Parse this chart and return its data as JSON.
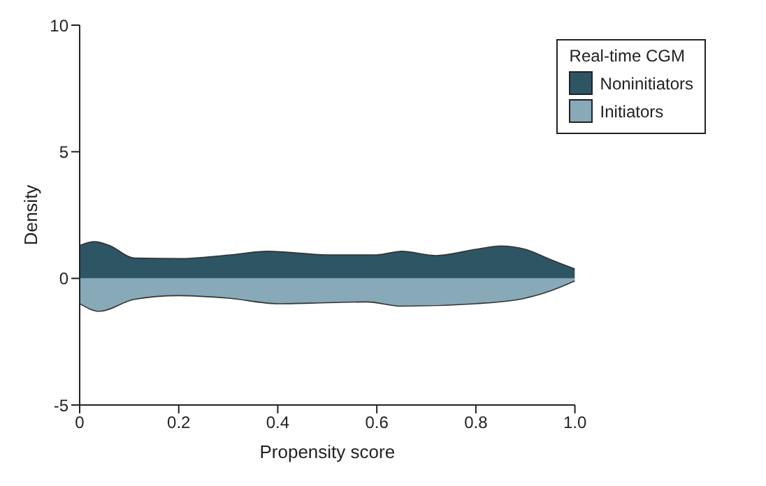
{
  "chart_data": {
    "type": "area",
    "xlabel": "Propensity score",
    "ylabel": "Density",
    "legend_title": "Real-time CGM",
    "legend": "top right",
    "xlim": [
      0,
      1
    ],
    "xticks": [
      0,
      0.2,
      0.4,
      0.6,
      0.8,
      {
        "value": 1,
        "label": "1.0"
      }
    ],
    "ylim": [
      -5,
      10
    ],
    "yticks": [
      -5,
      0,
      5,
      10
    ],
    "series": [
      {
        "name": "Noninitiators",
        "color": "#2e5564",
        "x": [
          0,
          0.03,
          0.06,
          0.11,
          0.2,
          0.3,
          0.38,
          0.5,
          0.6,
          0.65,
          0.72,
          0.8,
          0.85,
          0.9,
          0.95,
          1
        ],
        "values": [
          1.3,
          1.45,
          1.3,
          0.8,
          0.78,
          0.92,
          1.07,
          0.93,
          0.93,
          1.07,
          0.9,
          1.15,
          1.28,
          1.15,
          0.75,
          0.37
        ]
      },
      {
        "name": "Initiators",
        "color": "#87a9b8",
        "x": [
          0,
          0.04,
          0.11,
          0.2,
          0.3,
          0.4,
          0.5,
          0.58,
          0.65,
          0.8,
          0.9,
          0.95,
          1
        ],
        "values": [
          -1,
          -1.3,
          -0.83,
          -0.68,
          -0.78,
          -1,
          -0.96,
          -0.93,
          -1.1,
          -1,
          -0.78,
          -0.5,
          -0.1
        ]
      }
    ]
  }
}
